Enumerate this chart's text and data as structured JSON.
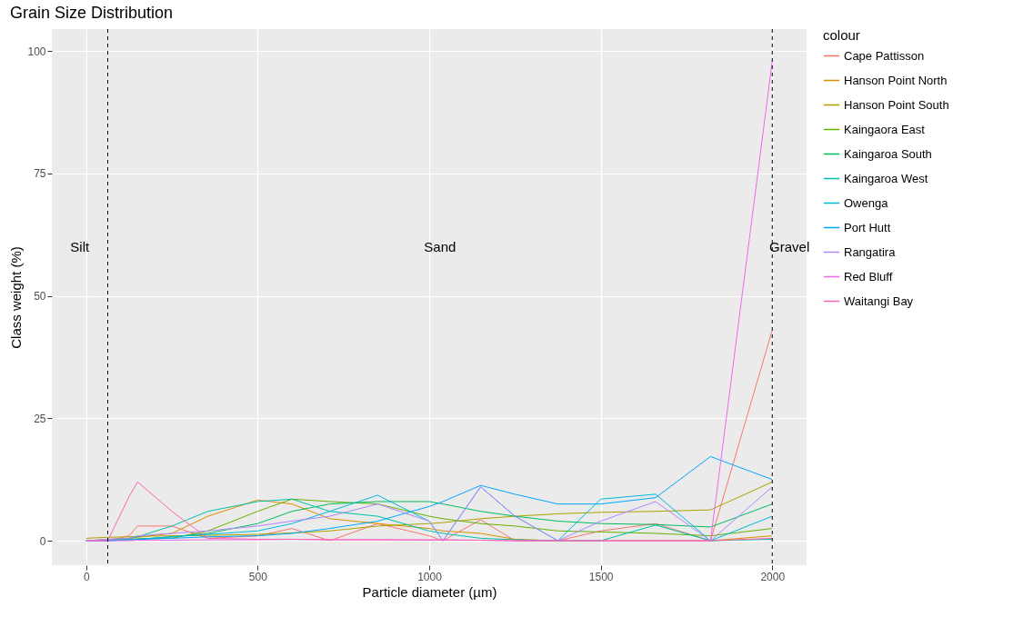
{
  "chart_data": {
    "type": "line",
    "title": "Grain Size Distribution",
    "xlabel": "Particle diameter (µm)",
    "ylabel": "Class weight (%)",
    "legend_title": "colour",
    "legend": "right",
    "grid": true,
    "x": [
      0,
      63,
      125,
      150,
      250,
      355,
      500,
      600,
      710,
      850,
      1000,
      1040,
      1150,
      1250,
      1375,
      1500,
      1660,
      1820,
      2000
    ],
    "xlim": [
      -100,
      2100
    ],
    "xticks": [
      0,
      500,
      1000,
      1500,
      2000
    ],
    "ylim": [
      -5,
      104.5
    ],
    "yticks": [
      0,
      25,
      50,
      75,
      100
    ],
    "series": [
      {
        "name": "Cape Pattisson",
        "color": "#f8766d",
        "values": [
          0,
          0,
          1,
          3,
          3,
          0.5,
          1,
          2.5,
          0,
          3.5,
          1,
          0,
          4.3,
          0,
          0,
          2,
          3.5,
          0,
          43
        ]
      },
      {
        "name": "Hanson Point North",
        "color": "#db8e00",
        "values": [
          0,
          0.3,
          0.5,
          0.7,
          1.5,
          5,
          8.3,
          7.5,
          4.5,
          3.5,
          2.5,
          2,
          1.5,
          0.3,
          0,
          0,
          0,
          0,
          1
        ]
      },
      {
        "name": "Hanson Point South",
        "color": "#aea200",
        "values": [
          0.5,
          0.7,
          0.8,
          0.9,
          1,
          1.1,
          1.3,
          1.6,
          2,
          3,
          3.5,
          3.7,
          4.5,
          5,
          5.5,
          5.8,
          6,
          6.3,
          12
        ]
      },
      {
        "name": "Kaingaora East",
        "color": "#64b200",
        "values": [
          0,
          0.1,
          0.3,
          0.4,
          0.5,
          2,
          6,
          8.5,
          8,
          7.5,
          5,
          4.5,
          3.5,
          3,
          2,
          1.8,
          1.5,
          1,
          2.5
        ]
      },
      {
        "name": "Kaingaroa South",
        "color": "#00bd5c",
        "values": [
          null,
          null,
          0.2,
          0.3,
          0.8,
          1.5,
          3.5,
          6,
          7.5,
          8,
          8,
          7.5,
          6,
          5,
          4,
          3.5,
          3.3,
          2.8,
          7.5
        ]
      },
      {
        "name": "Kaingaroa West",
        "color": "#00c1a7",
        "values": [
          0,
          0.2,
          0.5,
          0.8,
          3,
          6,
          8,
          8.5,
          6,
          5,
          2,
          1.5,
          0.5,
          0.2,
          0,
          0,
          3.2,
          0,
          0.3
        ]
      },
      {
        "name": "Owenga",
        "color": "#00bade",
        "values": [
          0,
          0,
          0.2,
          0.3,
          0.8,
          1.3,
          2,
          3.5,
          6,
          9.3,
          4,
          0,
          11,
          5,
          0,
          8.5,
          9.5,
          0,
          5
        ]
      },
      {
        "name": "Port Hutt",
        "color": "#00a6ff",
        "values": [
          0,
          0,
          0.2,
          0.3,
          0.5,
          0.8,
          1,
          1.5,
          2.5,
          4,
          7,
          8,
          11.3,
          9.5,
          7.5,
          7.5,
          8.8,
          17.2,
          12.5
        ]
      },
      {
        "name": "Rangatira",
        "color": "#b385ff",
        "values": [
          0,
          0.3,
          0.5,
          1,
          1.5,
          2,
          3,
          4,
          5,
          7.5,
          4,
          0,
          11,
          5,
          0,
          4,
          8,
          0,
          11
        ]
      },
      {
        "name": "Red Bluff",
        "color": "#ef67eb",
        "values": [
          0,
          0,
          0,
          0.1,
          0.1,
          0.2,
          0.2,
          0.3,
          0.2,
          0.2,
          0.1,
          0.1,
          0.1,
          0,
          0,
          0,
          0,
          0,
          98
        ]
      },
      {
        "name": "Waitangi Bay",
        "color": "#ff63b6",
        "values": [
          0,
          0,
          9,
          12,
          6,
          0.5,
          0.3,
          0.3,
          0.2,
          0.2,
          0.2,
          0.2,
          0.1,
          0,
          0,
          0,
          0,
          0,
          0.5
        ]
      }
    ],
    "ref_lines": [
      {
        "axis": "x",
        "value": 63,
        "color": "#000000",
        "line_style": "dashed"
      },
      {
        "axis": "x",
        "value": 2000,
        "color": "#000000",
        "line_style": "dashed"
      }
    ],
    "annotations": [
      "Silt",
      "Sand",
      "Gravel"
    ]
  }
}
